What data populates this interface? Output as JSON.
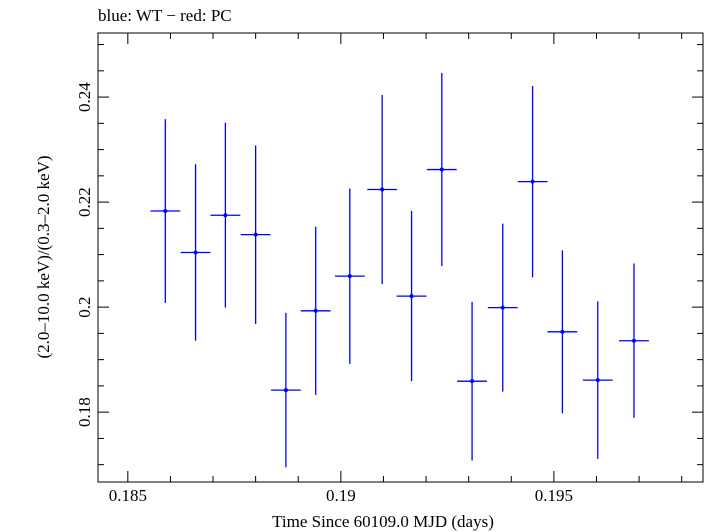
{
  "chart_data": {
    "type": "scatter",
    "title": "blue: WT − red: PC",
    "xlabel": "Time Since 60109.0 MJD (days)",
    "ylabel": "(2.0–10.0 keV)/(0.3–2.0 keV)",
    "xlim": [
      0.1843,
      0.1985
    ],
    "ylim": [
      0.1667,
      0.2522
    ],
    "x_ticks": [
      0.185,
      0.19,
      0.195
    ],
    "x_tick_labels": [
      "0.185",
      "0.19",
      "0.195"
    ],
    "y_ticks": [
      0.18,
      0.2,
      0.22,
      0.24
    ],
    "y_tick_labels": [
      "0.18",
      "0.2",
      "0.22",
      "0.24"
    ],
    "grid": false,
    "series": [
      {
        "color": "#0000ff",
        "points": [
          {
            "x": 0.18588,
            "xerr": 0.00035,
            "y": 0.2183,
            "yerr": 0.0175
          },
          {
            "x": 0.18659,
            "xerr": 0.00035,
            "y": 0.2104,
            "yerr": 0.0168
          },
          {
            "x": 0.18729,
            "xerr": 0.00035,
            "y": 0.2175,
            "yerr": 0.0176
          },
          {
            "x": 0.188,
            "xerr": 0.00035,
            "y": 0.2138,
            "yerr": 0.017
          },
          {
            "x": 0.18871,
            "xerr": 0.00035,
            "y": 0.1842,
            "yerr": 0.0147
          },
          {
            "x": 0.18941,
            "xerr": 0.00035,
            "y": 0.1993,
            "yerr": 0.016
          },
          {
            "x": 0.19021,
            "xerr": 0.00035,
            "y": 0.2059,
            "yerr": 0.0167
          },
          {
            "x": 0.19097,
            "xerr": 0.00035,
            "y": 0.2224,
            "yerr": 0.018
          },
          {
            "x": 0.19166,
            "xerr": 0.00035,
            "y": 0.2021,
            "yerr": 0.0162
          },
          {
            "x": 0.19237,
            "xerr": 0.00035,
            "y": 0.2262,
            "yerr": 0.0184
          },
          {
            "x": 0.19308,
            "xerr": 0.00035,
            "y": 0.1859,
            "yerr": 0.0151
          },
          {
            "x": 0.1938,
            "xerr": 0.00035,
            "y": 0.1999,
            "yerr": 0.016
          },
          {
            "x": 0.1945,
            "xerr": 0.00035,
            "y": 0.2239,
            "yerr": 0.0182
          },
          {
            "x": 0.1952,
            "xerr": 0.00035,
            "y": 0.1953,
            "yerr": 0.0155
          },
          {
            "x": 0.19603,
            "xerr": 0.00035,
            "y": 0.1861,
            "yerr": 0.015
          },
          {
            "x": 0.19688,
            "xerr": 0.00035,
            "y": 0.1936,
            "yerr": 0.0147
          }
        ]
      }
    ]
  }
}
